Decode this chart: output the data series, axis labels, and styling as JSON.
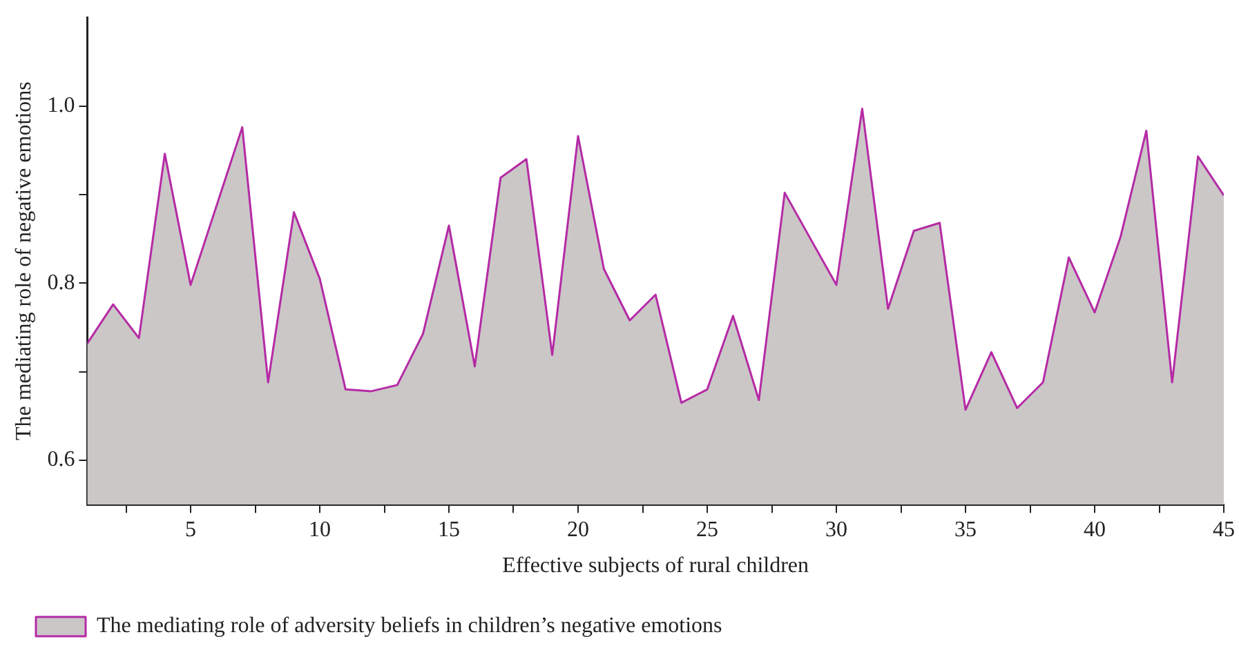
{
  "chart_data": {
    "type": "area",
    "xlabel": "Effective subjects of rural children",
    "ylabel": "The mediating role of negative emotions",
    "x": [
      1,
      2,
      3,
      4,
      5,
      6,
      7,
      8,
      9,
      10,
      11,
      12,
      13,
      14,
      15,
      16,
      17,
      18,
      19,
      20,
      21,
      22,
      23,
      24,
      25,
      26,
      27,
      28,
      29,
      30,
      31,
      32,
      33,
      34,
      35,
      36,
      37,
      38,
      39,
      40,
      41,
      42,
      43,
      44,
      45
    ],
    "series": [
      {
        "name": "The mediating role of adversity beliefs in children’s negative emotions",
        "color": "#cbc7c7",
        "values": [
          0.732,
          0.776,
          0.738,
          0.946,
          0.798,
          0.887,
          0.976,
          0.688,
          0.88,
          0.805,
          0.68,
          0.678,
          0.685,
          0.743,
          0.865,
          0.706,
          0.919,
          0.94,
          0.719,
          0.966,
          0.816,
          0.758,
          0.787,
          0.665,
          0.68,
          0.763,
          0.668,
          0.902,
          0.85,
          0.798,
          0.997,
          0.771,
          0.859,
          0.868,
          0.657,
          0.722,
          0.659,
          0.688,
          0.829,
          0.767,
          0.852,
          0.972,
          0.688,
          0.943,
          0.899
        ]
      }
    ],
    "xlim": [
      1,
      45
    ],
    "xticks": [
      {
        "value": 2.5,
        "label": null
      },
      5,
      {
        "value": 7.5,
        "label": null
      },
      10,
      {
        "value": 12.5,
        "label": null
      },
      15,
      {
        "value": 17.5,
        "label": null
      },
      20,
      {
        "value": 22.5,
        "label": null
      },
      25,
      {
        "value": 27.5,
        "label": null
      },
      30,
      {
        "value": 32.5,
        "label": null
      },
      35,
      {
        "value": 37.5,
        "label": null
      },
      40,
      {
        "value": 42.5,
        "label": null
      },
      45
    ],
    "ylim": [
      0.55,
      1.1
    ],
    "yticks": [
      {
        "value": 0.6,
        "label": "0.6"
      },
      {
        "value": 0.7,
        "label": null
      },
      {
        "value": 0.8,
        "label": "0.8"
      },
      {
        "value": 0.9,
        "label": null
      },
      {
        "value": 1.0,
        "label": "1.0"
      }
    ],
    "grid": false,
    "legend": "bottom left"
  }
}
